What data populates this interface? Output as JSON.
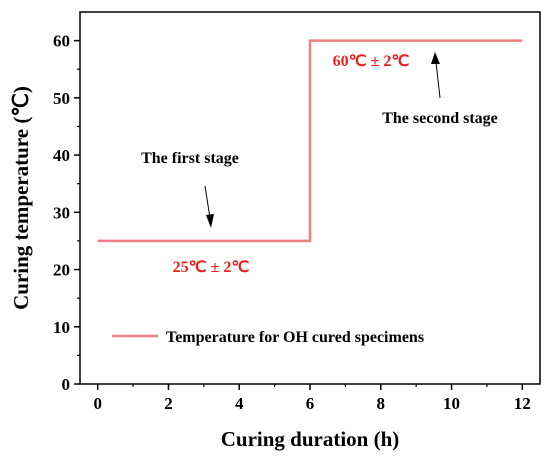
{
  "chart_data": {
    "type": "line",
    "title": "",
    "xlabel": "Curing duration (h)",
    "ylabel": "Curing temperature (℃)",
    "xlim": [
      -0.5,
      12.5
    ],
    "ylim": [
      0,
      65
    ],
    "xticks": [
      0,
      2,
      4,
      6,
      8,
      10,
      12
    ],
    "yticks": [
      0,
      10,
      20,
      30,
      40,
      50,
      60
    ],
    "grid": false,
    "legend_position": "lower-left",
    "series": [
      {
        "name": "Temperature for OH cured specimens",
        "color": "#f08080",
        "points": [
          [
            0,
            25
          ],
          [
            6,
            25
          ],
          [
            6,
            60
          ],
          [
            12,
            60
          ]
        ]
      }
    ],
    "annotations": [
      {
        "id": "first_stage",
        "text": "The first stage",
        "color": "#000000"
      },
      {
        "id": "second_stage",
        "text": "The second stage",
        "color": "#000000"
      },
      {
        "id": "temp1",
        "text": "25℃ ± 2℃",
        "color": "#e8211c"
      },
      {
        "id": "temp2",
        "text": "60℃ ± 2℃",
        "color": "#e8211c"
      }
    ]
  }
}
